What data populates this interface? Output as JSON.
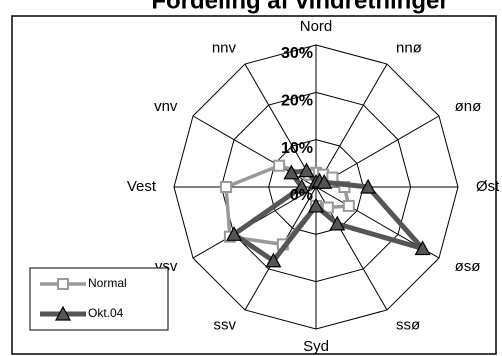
{
  "chart_data": {
    "type": "radar",
    "title": "Fordeling af vindretninger",
    "categories": [
      "Nord",
      "nnø",
      "ønø",
      "Øst",
      "øsø",
      "ssø",
      "Syd",
      "ssv",
      "vsv",
      "Vest",
      "vnv",
      "nnv"
    ],
    "series": [
      {
        "name": "Normal",
        "color": "#999999",
        "marker": "square",
        "values": [
          3,
          3,
          4,
          6,
          8,
          5,
          4,
          14,
          21,
          19,
          9,
          3
        ]
      },
      {
        "name": "Okt.04",
        "color": "#555555",
        "marker": "triangle",
        "values": [
          1,
          1.5,
          2,
          11,
          26,
          9,
          4,
          18,
          20,
          3,
          6,
          4
        ]
      }
    ],
    "rlim": [
      0,
      30
    ],
    "rticks": [
      {
        "value": 0,
        "label": "0%"
      },
      {
        "value": 10,
        "label": "10%"
      },
      {
        "value": 20,
        "label": "20%"
      },
      {
        "value": 30,
        "label": "30%"
      }
    ],
    "grid": true,
    "legend": "lower left"
  }
}
